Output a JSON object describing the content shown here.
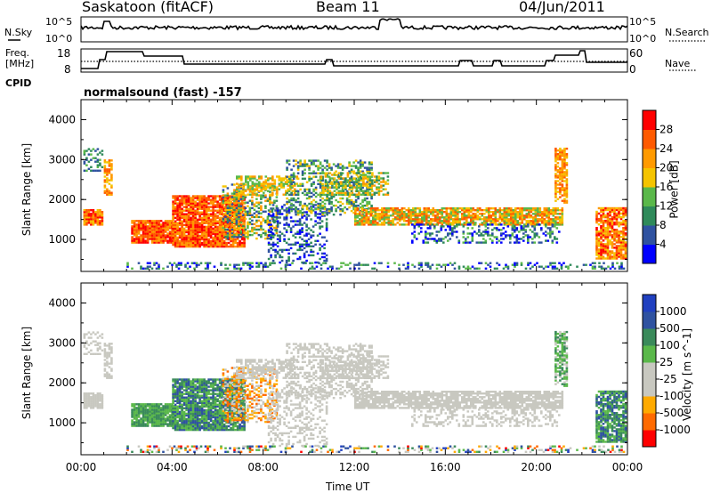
{
  "header": {
    "radar_title": "Saskatoon (fitACF)",
    "beam": "Beam 11",
    "date": "04/Jun/2011"
  },
  "status_panel": {
    "nsky_label": "N.Sky",
    "nsky_ticks": [
      "10^5",
      "10^0"
    ],
    "nsearch_label": "N.Search",
    "nsearch_ticks": [
      "10^5",
      "10^0"
    ],
    "freq_label_line1": "Freq.",
    "freq_label_line2": "[MHz]",
    "freq_ticks": [
      "18",
      "8"
    ],
    "nave_label": "Nave",
    "nave_ticks": [
      "60",
      "0"
    ],
    "cpid_label": "CPID",
    "cpid_value": "normalsound (fast) -157"
  },
  "colors": {
    "power_scale": [
      "#0000ff",
      "#2f52a0",
      "#2f8a5a",
      "#5ab84a",
      "#f5c400",
      "#ff9a00",
      "#ff5a00",
      "#ff0000"
    ],
    "velocity_scale": [
      "#ff0000",
      "#ff6a00",
      "#ffaa00",
      "#c8c8c0",
      "#c8c8c0",
      "#5ab84a",
      "#3a8a5a",
      "#2f52a0",
      "#2040c0"
    ]
  },
  "chart_data": [
    {
      "type": "heatmap",
      "name": "Power",
      "ylabel": "Slant Range [km]",
      "yticks": [
        "4000",
        "3000",
        "2000",
        "1000"
      ],
      "ylim": [
        200,
        4500
      ],
      "xticks": [
        "00:00",
        "04:00",
        "08:00",
        "12:00",
        "16:00",
        "20:00",
        "00:00"
      ],
      "colorbar_label": "Power [dB]",
      "colorbar_ticks": [
        "28",
        "24",
        "20",
        "16",
        "12",
        "8",
        "4"
      ]
    },
    {
      "type": "heatmap",
      "name": "Velocity",
      "ylabel": "Slant Range [km]",
      "yticks": [
        "4000",
        "3000",
        "2000",
        "1000"
      ],
      "ylim": [
        200,
        4500
      ],
      "xticks": [
        "00:00",
        "04:00",
        "08:00",
        "12:00",
        "16:00",
        "20:00",
        "00:00"
      ],
      "xlabel": "Time UT",
      "colorbar_label": "Velocity [m s^-1]",
      "colorbar_ticks": [
        "1000",
        "500",
        "100",
        "25",
        "-25",
        "-100",
        "-500",
        "-1000"
      ]
    }
  ]
}
